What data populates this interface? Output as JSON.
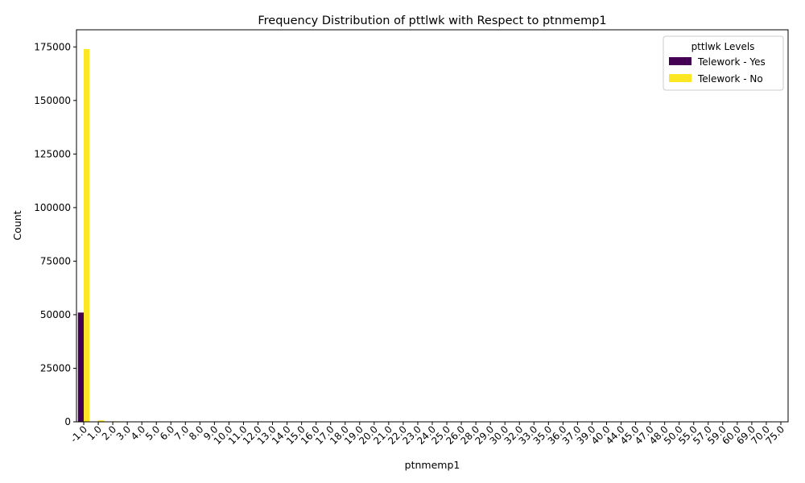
{
  "chart_data": {
    "type": "bar",
    "title": "Frequency Distribution of pttlwk with Respect to ptnmemp1",
    "xlabel": "ptnmemp1",
    "ylabel": "Count",
    "ylim": [
      0,
      183000
    ],
    "yticks": [
      0,
      25000,
      50000,
      75000,
      100000,
      125000,
      150000,
      175000
    ],
    "ytick_labels": [
      "0",
      "25000",
      "50000",
      "75000",
      "100000",
      "125000",
      "150000",
      "175000"
    ],
    "categories": [
      "-1.0",
      "1.0",
      "2.0",
      "3.0",
      "4.0",
      "5.0",
      "6.0",
      "7.0",
      "8.0",
      "9.0",
      "10.0",
      "11.0",
      "12.0",
      "13.0",
      "14.0",
      "15.0",
      "16.0",
      "17.0",
      "18.0",
      "19.0",
      "20.0",
      "21.0",
      "22.0",
      "23.0",
      "24.0",
      "25.0",
      "26.0",
      "28.0",
      "29.0",
      "30.0",
      "32.0",
      "33.0",
      "35.0",
      "36.0",
      "37.0",
      "39.0",
      "40.0",
      "44.0",
      "45.0",
      "47.0",
      "48.0",
      "50.0",
      "55.0",
      "57.0",
      "59.0",
      "60.0",
      "69.0",
      "70.0",
      "75.0"
    ],
    "legend": {
      "title": "pttlwk Levels",
      "position": "top-right"
    },
    "series": [
      {
        "name": "Telework - Yes",
        "color": "#440154",
        "values": [
          51000,
          150,
          40,
          15,
          10,
          8,
          5,
          4,
          3,
          2,
          3,
          1,
          2,
          1,
          1,
          2,
          1,
          1,
          1,
          0,
          2,
          0,
          0,
          0,
          1,
          1,
          0,
          0,
          0,
          1,
          0,
          0,
          0,
          0,
          0,
          0,
          1,
          0,
          0,
          0,
          0,
          1,
          0,
          0,
          0,
          1,
          0,
          0,
          0
        ]
      },
      {
        "name": "Telework - No",
        "color": "#fde725",
        "values": [
          174000,
          700,
          250,
          120,
          80,
          60,
          45,
          35,
          30,
          25,
          30,
          15,
          20,
          12,
          10,
          20,
          10,
          8,
          10,
          6,
          15,
          5,
          5,
          4,
          8,
          10,
          4,
          4,
          3,
          8,
          3,
          3,
          4,
          3,
          2,
          2,
          6,
          2,
          3,
          2,
          2,
          5,
          2,
          2,
          2,
          3,
          1,
          2,
          2
        ]
      }
    ]
  }
}
